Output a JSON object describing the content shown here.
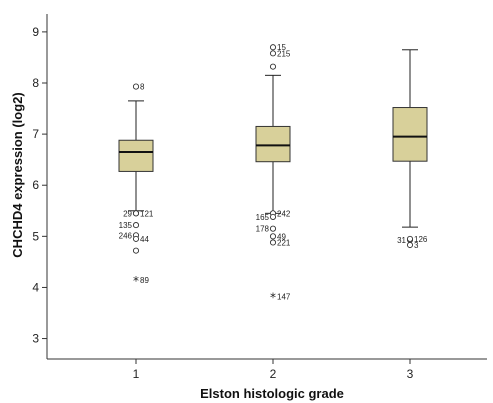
{
  "chart_data": {
    "type": "boxplot",
    "xlabel": "Elston histologic grade",
    "ylabel": "CHCHD4 expression (log2)",
    "ylim": [
      2.6,
      9.35
    ],
    "yticks": [
      3,
      4,
      5,
      6,
      7,
      8,
      9
    ],
    "categories": [
      "1",
      "2",
      "3"
    ],
    "box_color": "#d8d09a",
    "grid": false,
    "boxes": [
      {
        "category": "1",
        "whisker_low": 5.5,
        "q1": 6.27,
        "median": 6.65,
        "q3": 6.88,
        "whisker_high": 7.65,
        "outliers": [
          {
            "y": 7.93,
            "label": "8",
            "marker": "circle"
          },
          {
            "y": 5.45,
            "label": "29",
            "marker": "circle"
          },
          {
            "y": 5.45,
            "label": "121",
            "marker": "circle"
          },
          {
            "y": 5.22,
            "label": "135",
            "marker": "circle"
          },
          {
            "y": 5.02,
            "label": "246",
            "marker": "circle"
          },
          {
            "y": 4.95,
            "label": "44",
            "marker": "circle"
          },
          {
            "y": 4.72,
            "label": "",
            "marker": "circle"
          },
          {
            "y": 4.15,
            "label": "89",
            "marker": "star"
          }
        ]
      },
      {
        "category": "2",
        "whisker_low": 5.45,
        "q1": 6.46,
        "median": 6.78,
        "q3": 7.15,
        "whisker_high": 8.15,
        "outliers": [
          {
            "y": 8.7,
            "label": "15",
            "marker": "circle"
          },
          {
            "y": 8.58,
            "label": "215",
            "marker": "circle"
          },
          {
            "y": 8.32,
            "label": "",
            "marker": "circle"
          },
          {
            "y": 5.45,
            "label": "242",
            "marker": "circle"
          },
          {
            "y": 5.38,
            "label": "165",
            "marker": "circle"
          },
          {
            "y": 5.15,
            "label": "178",
            "marker": "circle"
          },
          {
            "y": 5.0,
            "label": "49",
            "marker": "circle"
          },
          {
            "y": 4.88,
            "label": "221",
            "marker": "circle"
          },
          {
            "y": 3.82,
            "label": "147",
            "marker": "star"
          }
        ]
      },
      {
        "category": "3",
        "whisker_low": 5.18,
        "q1": 6.47,
        "median": 6.95,
        "q3": 7.52,
        "whisker_high": 8.65,
        "outliers": [
          {
            "y": 4.93,
            "label": "31",
            "marker": "circle"
          },
          {
            "y": 4.95,
            "label": "126",
            "marker": "circle"
          },
          {
            "y": 4.83,
            "label": "3",
            "marker": "circle"
          }
        ]
      }
    ]
  }
}
